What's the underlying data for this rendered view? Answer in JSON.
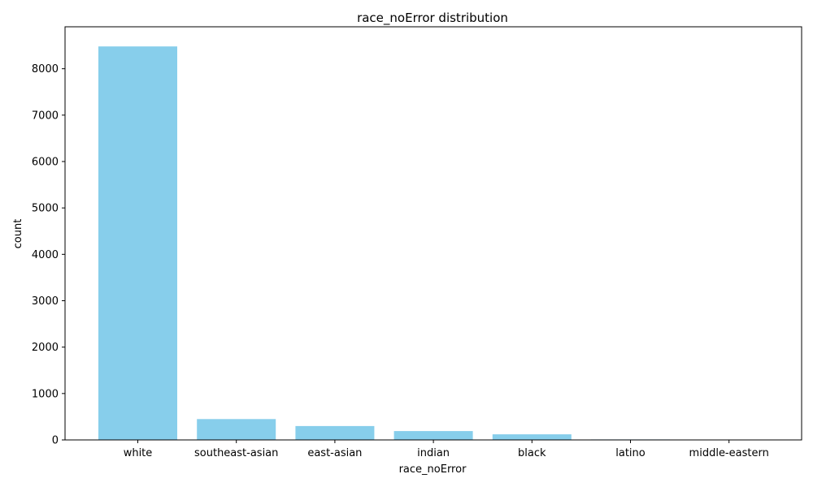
{
  "chart_data": {
    "type": "bar",
    "title": "race_noError distribution",
    "xlabel": "race_noError",
    "ylabel": "count",
    "categories": [
      "white",
      "southeast-asian",
      "east-asian",
      "indian",
      "black",
      "latino",
      "middle-eastern"
    ],
    "values": [
      8480,
      450,
      300,
      190,
      120,
      10,
      8
    ],
    "ylim": [
      0,
      8904
    ],
    "yticks": [
      0,
      1000,
      2000,
      3000,
      4000,
      5000,
      6000,
      7000,
      8000
    ],
    "bar_color": "#87CEEB",
    "grid": false
  }
}
